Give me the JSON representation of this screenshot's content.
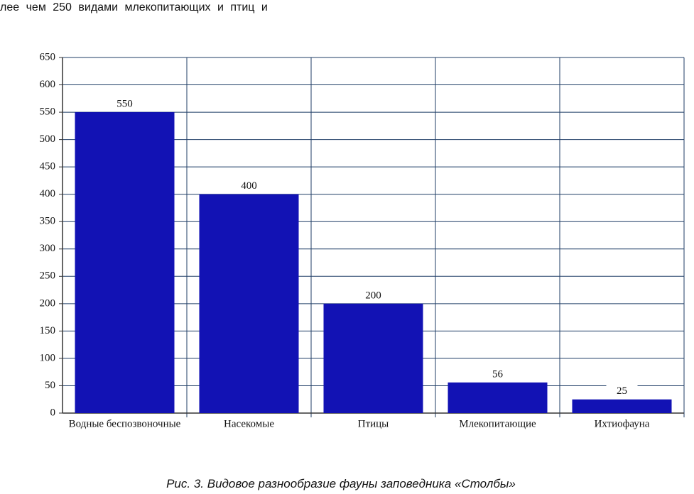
{
  "top_text": "лее чем 250 видами млекопитающих и птиц и",
  "chart_data": {
    "type": "bar",
    "categories": [
      "Водные беспозвоночные",
      "Насекомые",
      "Птицы",
      "Млекопитающие",
      "Ихтиофауна"
    ],
    "values": [
      550,
      400,
      200,
      56,
      25
    ],
    "color": "#1212b4",
    "ylim": [
      0,
      650
    ],
    "yticks": [
      0,
      50,
      100,
      150,
      200,
      250,
      300,
      350,
      400,
      450,
      500,
      550,
      600,
      650
    ],
    "grid": true
  },
  "caption": "Рис. 3. Видовое разнообразие фауны заповедника «Столбы»"
}
